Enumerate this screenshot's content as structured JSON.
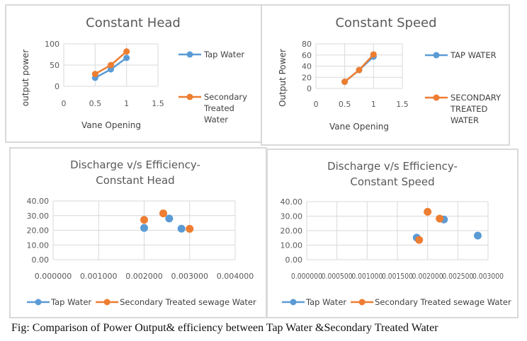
{
  "caption": "Fig: Comparison of Power Output& efficiency between Tap Water &Secondary Treated Water",
  "colors": {
    "series1": "#5b9bd5",
    "series2": "#ed7d31",
    "grid": "#d9d9d9",
    "border": "#d9d9d9"
  },
  "chart_data": [
    {
      "type": "line",
      "title": "Constant Head",
      "xlabel": "Vane Opening",
      "ylabel": "output power",
      "xlim": [
        0,
        1.5
      ],
      "ylim": [
        0,
        100
      ],
      "xticks": [
        0,
        0.5,
        1,
        1.5
      ],
      "xtick_labels": [
        "0",
        "0.5",
        "1",
        "1.5"
      ],
      "yticks": [
        0,
        50,
        100
      ],
      "ytick_labels": [
        "0",
        "50",
        "100"
      ],
      "grid": true,
      "legend": "right",
      "series": [
        {
          "name": "Tap Water",
          "x": [
            0.5,
            0.75,
            1
          ],
          "y": [
            20,
            40,
            67
          ]
        },
        {
          "name": "Secondary Treated Water",
          "legend_lines": [
            "Secondary",
            "Treated",
            "Water"
          ],
          "x": [
            0.5,
            0.75,
            1
          ],
          "y": [
            29,
            50,
            82
          ]
        }
      ]
    },
    {
      "type": "line",
      "title": "Constant Speed",
      "xlabel": "Vane Opening",
      "ylabel": "Output Power",
      "xlim": [
        0,
        1.5
      ],
      "ylim": [
        0,
        80
      ],
      "xticks": [
        0,
        0.5,
        1,
        1.5
      ],
      "xtick_labels": [
        "0",
        "0.5",
        "1",
        "1.5"
      ],
      "yticks": [
        0,
        20,
        40,
        60,
        80
      ],
      "ytick_labels": [
        "0",
        "20",
        "40",
        "60",
        "80"
      ],
      "grid": true,
      "legend": "right",
      "series": [
        {
          "name": "TAP WATER",
          "x": [
            0.5,
            0.75,
            1
          ],
          "y": [
            12,
            33,
            57
          ]
        },
        {
          "name": "SECONDARY TREATED WATER",
          "legend_lines": [
            "SECONDARY",
            "TREATED",
            "WATER"
          ],
          "x": [
            0.5,
            0.75,
            1
          ],
          "y": [
            12,
            33,
            61
          ]
        }
      ]
    },
    {
      "type": "scatter",
      "title": "Discharge v/s Efficiency-Constant Head",
      "title_lines": [
        "Discharge v/s Efficiency-",
        "Constant Head"
      ],
      "xlabel": "",
      "ylabel": "",
      "xlim": [
        0,
        0.004
      ],
      "ylim": [
        0,
        40
      ],
      "xticks": [
        0,
        0.001,
        0.002,
        0.003,
        0.004
      ],
      "xtick_labels": [
        "0.000000",
        "0.001000",
        "0.002000",
        "0.003000",
        "0.004000"
      ],
      "yticks": [
        0,
        10,
        20,
        30,
        40
      ],
      "ytick_labels": [
        "0.00",
        "10.00",
        "20.00",
        "30.00",
        "40.00"
      ],
      "grid": true,
      "legend": "bottom",
      "series": [
        {
          "name": "Tap Water",
          "x": [
            0.002,
            0.00255,
            0.00282
          ],
          "y": [
            21.6,
            28.0,
            21.1
          ]
        },
        {
          "name": "Secondary Treated sewage Water",
          "x": [
            0.002,
            0.00242,
            0.003
          ],
          "y": [
            27.1,
            31.5,
            21.0
          ]
        }
      ]
    },
    {
      "type": "scatter",
      "title": "Discharge v/s Efficiency-Constant Speed",
      "title_lines": [
        "Discharge v/s Efficiency-",
        "Constant Speed"
      ],
      "xlabel": "",
      "ylabel": "",
      "xlim": [
        0,
        0.003
      ],
      "ylim": [
        0,
        40
      ],
      "xticks": [
        0,
        0.0005,
        0.001,
        0.0015,
        0.002,
        0.0025,
        0.003
      ],
      "xtick_labels": [
        "0.000000",
        "0.000500",
        "0.001000",
        "0.001500",
        "0.002000",
        "0.002500",
        "0.003000"
      ],
      "yticks": [
        0,
        10,
        20,
        30,
        40
      ],
      "ytick_labels": [
        "0.00",
        "10.00",
        "20.00",
        "30.00",
        "40.00"
      ],
      "grid": true,
      "legend": "bottom",
      "series": [
        {
          "name": "Tap Water",
          "x": [
            0.00182,
            0.00227,
            0.00283
          ],
          "y": [
            15.2,
            27.7,
            16.6
          ]
        },
        {
          "name": "Secondary Treated sewage Water",
          "x": [
            0.00186,
            0.002,
            0.0022
          ],
          "y": [
            13.6,
            33.0,
            28.3
          ]
        }
      ]
    }
  ]
}
